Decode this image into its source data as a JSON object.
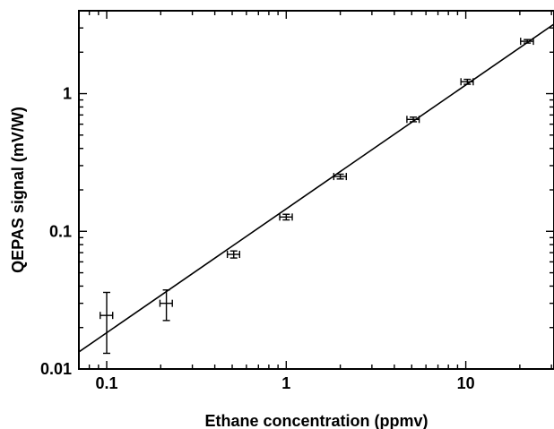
{
  "chart_data": {
    "type": "scatter",
    "title": "",
    "xlabel": "Ethane concentration (ppmv)",
    "ylabel": "QEPAS signal (mV/W)",
    "xscale": "log",
    "yscale": "log",
    "xlim": [
      0.07,
      31
    ],
    "ylim": [
      0.01,
      4
    ],
    "x_ticks": [
      0.1,
      1,
      10
    ],
    "x_tick_labels": [
      "0.1",
      "1",
      "10"
    ],
    "y_ticks": [
      0.01,
      0.1,
      1
    ],
    "y_tick_labels": [
      "0.01",
      "0.1",
      "1"
    ],
    "grid": false,
    "legend": "none",
    "series": [
      {
        "points": [
          {
            "x": 0.1,
            "y": 0.0245,
            "xerr": [
              0.092,
              0.108
            ],
            "yerr": [
              0.013,
              0.036
            ]
          },
          {
            "x": 0.215,
            "y": 0.03,
            "xerr": [
              0.198,
              0.232
            ],
            "yerr": [
              0.0225,
              0.0375
            ]
          },
          {
            "x": 0.51,
            "y": 0.068,
            "xerr": [
              0.47,
              0.55
            ],
            "yerr": [
              0.064,
              0.072
            ]
          },
          {
            "x": 1.0,
            "y": 0.127,
            "xerr": [
              0.92,
              1.08
            ],
            "yerr": [
              0.121,
              0.133
            ]
          },
          {
            "x": 2.0,
            "y": 0.25,
            "xerr": [
              1.84,
              2.16
            ],
            "yerr": [
              0.24,
              0.26
            ]
          },
          {
            "x": 5.1,
            "y": 0.65,
            "xerr": [
              4.7,
              5.5
            ],
            "yerr": [
              0.625,
              0.675
            ]
          },
          {
            "x": 10.2,
            "y": 1.22,
            "xerr": [
              9.4,
              11.0
            ],
            "yerr": [
              1.17,
              1.27
            ]
          },
          {
            "x": 22.0,
            "y": 2.4,
            "xerr": [
              20.2,
              23.8
            ],
            "yerr": [
              2.33,
              2.47
            ]
          }
        ]
      }
    ],
    "fit_line": {
      "x": [
        0.07,
        31
      ],
      "y": [
        0.0133,
        3.2
      ]
    }
  }
}
